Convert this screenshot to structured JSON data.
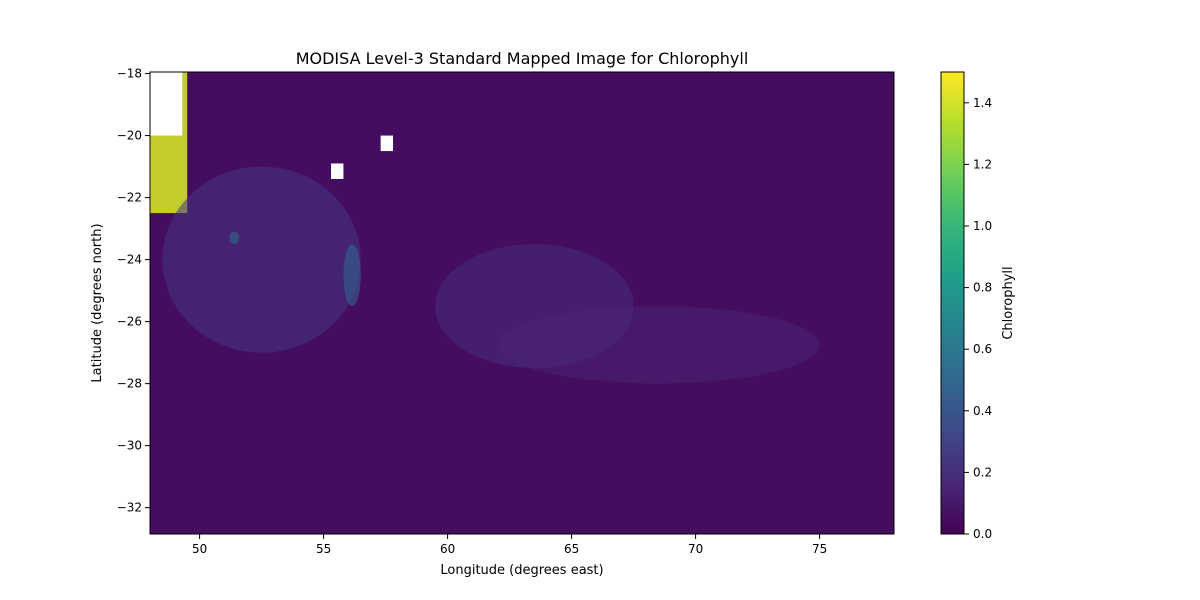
{
  "chart_data": {
    "type": "heatmap",
    "title": "MODISA Level-3 Standard Mapped Image for Chlorophyll",
    "xlabel": "Longitude (degrees east)",
    "ylabel": "Latitude (degrees north)",
    "colorbar_label": "Chlorophyll",
    "xlim": [
      48,
      78
    ],
    "ylim": [
      -32.85,
      -17.95
    ],
    "xticks": [
      50,
      55,
      60,
      65,
      70,
      75
    ],
    "yticks": [
      -18,
      -20,
      -22,
      -24,
      -26,
      -28,
      -30,
      -32
    ],
    "xtick_labels": [
      "50",
      "55",
      "60",
      "65",
      "70",
      "75"
    ],
    "ytick_labels": [
      "−18",
      "−20",
      "−22",
      "−24",
      "−26",
      "−28",
      "−30",
      "−32"
    ],
    "colorbar_range": [
      0.0,
      1.5
    ],
    "colorbar_ticks": [
      0.0,
      0.2,
      0.4,
      0.6,
      0.8,
      1.0,
      1.2,
      1.4
    ],
    "colorbar_tick_labels": [
      "0.0",
      "0.2",
      "0.4",
      "0.6",
      "0.8",
      "1.0",
      "1.2",
      "1.4"
    ],
    "colormap": "viridis",
    "background_value": 0.05,
    "features": [
      {
        "kind": "coastal-high",
        "lon": [
          48.0,
          49.5
        ],
        "lat": [
          -22.5,
          -17.95
        ],
        "value": 1.4
      },
      {
        "kind": "bloom",
        "lon": [
          48.5,
          56.5
        ],
        "lat": [
          -27.0,
          -21.0
        ],
        "value": 0.25
      },
      {
        "kind": "bloom",
        "lon": [
          51.2,
          51.6
        ],
        "lat": [
          -23.5,
          -23.1
        ],
        "value": 0.55
      },
      {
        "kind": "bloom",
        "lon": [
          55.8,
          56.5
        ],
        "lat": [
          -25.5,
          -23.5
        ],
        "value": 0.5
      },
      {
        "kind": "filament",
        "lon": [
          59.5,
          67.5
        ],
        "lat": [
          -27.5,
          -23.5
        ],
        "value": 0.2
      },
      {
        "kind": "filament",
        "lon": [
          62.0,
          75.0
        ],
        "lat": [
          -28.0,
          -25.5
        ],
        "value": 0.15
      },
      {
        "kind": "nodata",
        "lon": [
          55.3,
          55.8
        ],
        "lat": [
          -21.4,
          -20.9
        ]
      },
      {
        "kind": "nodata",
        "lon": [
          57.3,
          57.8
        ],
        "lat": [
          -20.5,
          -20.0
        ]
      },
      {
        "kind": "nodata",
        "lon": [
          48.0,
          49.3
        ],
        "lat": [
          -20.0,
          -17.95
        ]
      }
    ]
  },
  "colors": {
    "viridis": [
      "#440154",
      "#482878",
      "#3e4989",
      "#31688e",
      "#26828e",
      "#1f9e89",
      "#35b779",
      "#6ece58",
      "#b5de2b",
      "#fde725"
    ]
  }
}
